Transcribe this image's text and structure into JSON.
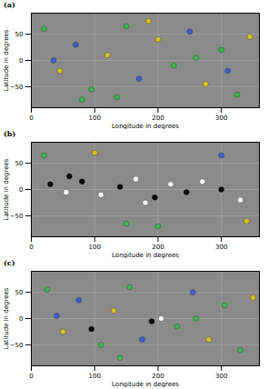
{
  "chart_data": [
    {
      "type": "scatter",
      "title": "(a)",
      "xlabel": "Longitude in degrees",
      "ylabel": "Latitude in degrees",
      "xlim": [
        0,
        360
      ],
      "ylim": [
        -90,
        90
      ],
      "xticks": [
        0,
        100,
        200,
        300
      ],
      "yticks": [
        -50,
        0,
        50
      ],
      "x": [
        20,
        45,
        70,
        95,
        120,
        150,
        170,
        200,
        225,
        250,
        275,
        300,
        325,
        345,
        35,
        135,
        185,
        260,
        310,
        80
      ],
      "values": [
        60,
        -20,
        30,
        -55,
        10,
        65,
        -35,
        40,
        -10,
        55,
        -45,
        20,
        -65,
        45,
        0,
        -70,
        75,
        5,
        -20,
        -75
      ],
      "colors": [
        "#3cb44b",
        "#d8c020",
        "#3a5fcd",
        "#3cb44b",
        "#d8c020",
        "#3cb44b",
        "#3a5fcd",
        "#d8c020",
        "#3cb44b",
        "#3a5fcd",
        "#d8c020",
        "#3cb44b",
        "#3cb44b",
        "#d8c020",
        "#3a5fcd",
        "#3cb44b",
        "#d8c020",
        "#3cb44b",
        "#3a5fcd",
        "#3cb44b"
      ]
    },
    {
      "type": "scatter",
      "title": "(b)",
      "xlabel": "Longitude in degrees",
      "ylabel": "Latitude in degrees",
      "xlim": [
        0,
        360
      ],
      "ylim": [
        -90,
        90
      ],
      "xticks": [
        0,
        100,
        200,
        300
      ],
      "yticks": [
        -50,
        0,
        50
      ],
      "x": [
        30,
        55,
        80,
        110,
        140,
        165,
        195,
        220,
        245,
        270,
        300,
        330,
        60,
        180,
        20,
        100,
        200,
        300,
        150,
        340
      ],
      "values": [
        10,
        -5,
        15,
        -10,
        5,
        20,
        -15,
        10,
        -5,
        15,
        0,
        -20,
        25,
        -25,
        65,
        70,
        -70,
        65,
        -65,
        -60
      ],
      "colors": [
        "#000000",
        "#ffffff",
        "#000000",
        "#ffffff",
        "#000000",
        "#ffffff",
        "#000000",
        "#ffffff",
        "#000000",
        "#ffffff",
        "#000000",
        "#ffffff",
        "#000000",
        "#ffffff",
        "#3cb44b",
        "#d8c020",
        "#3cb44b",
        "#3a5fcd",
        "#3cb44b",
        "#d8c020"
      ]
    },
    {
      "type": "scatter",
      "title": "(c)",
      "xlabel": "Longitude in degrees",
      "ylabel": "Latitude in degrees",
      "xlim": [
        0,
        360
      ],
      "ylim": [
        -90,
        90
      ],
      "xticks": [
        0,
        100,
        200,
        300
      ],
      "yticks": [
        -50,
        0,
        50
      ],
      "x": [
        25,
        50,
        75,
        110,
        130,
        155,
        175,
        230,
        255,
        280,
        305,
        330,
        350,
        40,
        140,
        260,
        190,
        205,
        95
      ],
      "values": [
        55,
        -25,
        35,
        -50,
        15,
        60,
        -40,
        -15,
        50,
        -40,
        25,
        -60,
        40,
        5,
        -75,
        0,
        -5,
        0,
        -20
      ],
      "colors": [
        "#3cb44b",
        "#d8c020",
        "#3a5fcd",
        "#3cb44b",
        "#d8c020",
        "#3cb44b",
        "#3a5fcd",
        "#3cb44b",
        "#3a5fcd",
        "#d8c020",
        "#3cb44b",
        "#3cb44b",
        "#d8c020",
        "#3a5fcd",
        "#3cb44b",
        "#3cb44b",
        "#000000",
        "#ffffff",
        "#000000"
      ]
    }
  ]
}
